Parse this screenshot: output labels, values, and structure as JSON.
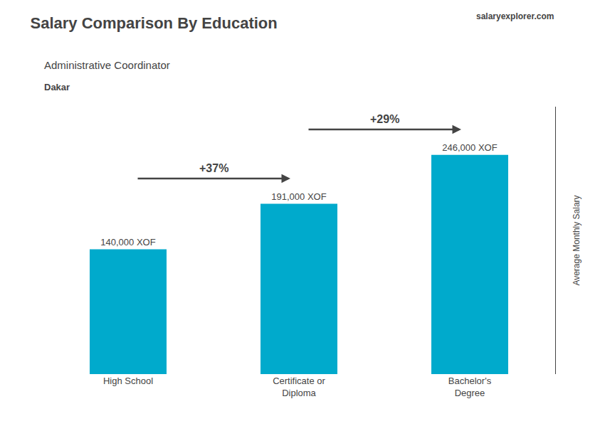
{
  "chart_data": {
    "type": "bar",
    "title": "Salary Comparison By Education",
    "subtitle": [
      "Administrative Coordinator",
      "Dakar"
    ],
    "source": "salaryexplorer.com",
    "ylabel": "Average Monthly Salary",
    "categories": [
      "High School",
      "Certificate or\nDiploma",
      "Bachelor's\nDegree"
    ],
    "values": [
      140000,
      191000,
      246000
    ],
    "value_labels": [
      "140,000 XOF",
      "191,000 XOF",
      "246,000 XOF"
    ],
    "data_labels": true,
    "annotations": [
      "+37%",
      "+29%"
    ],
    "color": "#00aacc",
    "ylim": [
      0,
      300000
    ],
    "grid": false,
    "tick_labels": "x"
  }
}
